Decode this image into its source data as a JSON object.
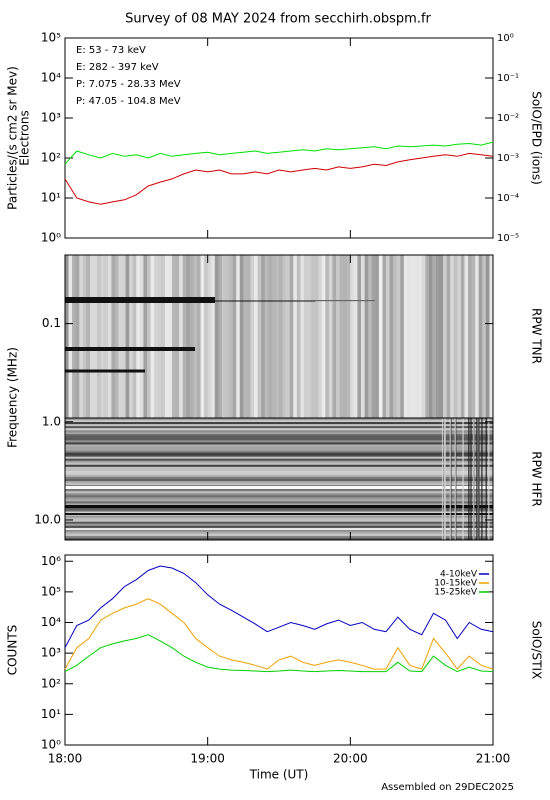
{
  "title": "Survey of 08 MAY 2024 from secchirh.obspm.fr",
  "footer": "Assembled on 29DEC2025",
  "chart_data": [
    {
      "type": "line",
      "log": true,
      "ylabel": [
        "Particles/(s cm2 sr Mev)",
        "Electrons"
      ],
      "y2label": "SolO/EPD (ions)",
      "xlim": [
        18,
        21
      ],
      "x": [
        18,
        18.083,
        18.167,
        18.25,
        18.333,
        18.417,
        18.5,
        18.583,
        18.667,
        18.75,
        18.833,
        18.917,
        19,
        19.083,
        19.167,
        19.25,
        19.333,
        19.417,
        19.5,
        19.583,
        19.667,
        19.75,
        19.833,
        19.917,
        20,
        20.083,
        20.167,
        20.25,
        20.333,
        20.417,
        20.5,
        20.583,
        20.667,
        20.75,
        20.833,
        20.917,
        21
      ],
      "ylim": [
        1,
        100000
      ],
      "yticks": [
        {
          "value": 1,
          "label": "10⁰"
        },
        {
          "value": 10,
          "label": "10¹"
        },
        {
          "value": 100,
          "label": "10²"
        },
        {
          "value": 1000,
          "label": "10³"
        },
        {
          "value": 10000,
          "label": "10⁴"
        },
        {
          "value": 100000,
          "label": "10⁵"
        }
      ],
      "y2lim": [
        1e-05,
        1
      ],
      "y2ticks": [
        {
          "value": 1e-05,
          "label": "10⁻⁵"
        },
        {
          "value": 0.0001,
          "label": "10⁻⁴"
        },
        {
          "value": 0.001,
          "label": "10⁻³"
        },
        {
          "value": 0.01,
          "label": "10⁻²"
        },
        {
          "value": 0.1,
          "label": "10⁻¹"
        },
        {
          "value": 1,
          "label": "10⁰"
        }
      ],
      "legend": "upper left",
      "series": [
        {
          "name": "E: 53 - 73 keV",
          "color": "#00e000",
          "values": [
            70,
            150,
            120,
            100,
            130,
            110,
            120,
            100,
            130,
            110,
            120,
            130,
            140,
            120,
            130,
            140,
            150,
            130,
            140,
            150,
            160,
            150,
            170,
            160,
            170,
            180,
            190,
            170,
            200,
            190,
            200,
            210,
            200,
            220,
            230,
            210,
            250
          ]
        },
        {
          "name": "E: 282 - 397 keV",
          "color": "#d00000",
          "values": [
            30,
            10,
            8,
            7,
            8,
            9,
            12,
            20,
            25,
            30,
            40,
            50,
            45,
            50,
            40,
            40,
            45,
            40,
            50,
            45,
            50,
            55,
            50,
            60,
            55,
            60,
            70,
            65,
            80,
            90,
            100,
            110,
            120,
            110,
            130,
            120,
            110
          ]
        },
        {
          "name": "P: 7.075 - 28.33 MeV",
          "color": "#000000",
          "axis": "y2",
          "values": [
            null,
            null,
            null,
            null,
            null,
            null,
            null,
            null,
            null,
            null,
            null,
            null,
            null,
            null,
            null,
            null,
            null,
            null,
            null,
            null,
            null,
            null,
            null,
            null,
            null,
            null,
            null,
            null,
            null,
            null,
            null,
            null,
            null,
            null,
            null,
            null,
            null
          ]
        },
        {
          "name": "P: 47.05 - 104.8 MeV",
          "color": "#0000c0",
          "axis": "y2",
          "values": [
            null,
            null,
            null,
            null,
            null,
            null,
            null,
            null,
            null,
            null,
            null,
            null,
            null,
            null,
            null,
            null,
            null,
            null,
            null,
            null,
            null,
            null,
            null,
            null,
            null,
            null,
            null,
            null,
            null,
            null,
            null,
            null,
            null,
            null,
            null,
            null,
            null
          ]
        }
      ]
    },
    {
      "type": "spectrogram",
      "log": true,
      "inverted": true,
      "ylabel": "Frequency (MHz)",
      "annotations": [
        "RPW TNR",
        "RPW HFR"
      ],
      "xlim": [
        18,
        21
      ],
      "ylim": [
        0.02,
        16
      ],
      "yticks": [
        0.1,
        {
          "value": 1,
          "label": "1.0"
        },
        {
          "value": 10,
          "label": "10.0"
        }
      ]
    },
    {
      "type": "line",
      "log": true,
      "ylabel": "COUNTS",
      "y2label": "SolO/STIX",
      "xlabel": "Time (UT)",
      "xlim": [
        18,
        21
      ],
      "xticks": [
        {
          "value": 18,
          "label": "18:00"
        },
        {
          "value": 19,
          "label": "19:00"
        },
        {
          "value": 20,
          "label": "20:00"
        },
        {
          "value": 21,
          "label": "21:00"
        }
      ],
      "x": [
        18,
        18.083,
        18.167,
        18.25,
        18.333,
        18.417,
        18.5,
        18.583,
        18.667,
        18.75,
        18.833,
        18.917,
        19,
        19.083,
        19.167,
        19.25,
        19.333,
        19.417,
        19.5,
        19.583,
        19.667,
        19.75,
        19.833,
        19.917,
        20,
        20.083,
        20.167,
        20.25,
        20.333,
        20.417,
        20.5,
        20.583,
        20.667,
        20.75,
        20.833,
        20.917,
        21
      ],
      "ylim": [
        1,
        1600000
      ],
      "yticks": [
        {
          "value": 1,
          "label": "10⁰"
        },
        {
          "value": 10,
          "label": "10¹"
        },
        {
          "value": 100,
          "label": "10²"
        },
        {
          "value": 1000,
          "label": "10³"
        },
        {
          "value": 10000,
          "label": "10⁴"
        },
        {
          "value": 100000,
          "label": "10⁵"
        },
        {
          "value": 1000000,
          "label": "10⁶"
        }
      ],
      "legend": "upper right",
      "series": [
        {
          "name": "4-10keV",
          "color": "#0000c0",
          "values": [
            1500,
            8000,
            12000,
            30000,
            60000,
            150000,
            250000,
            500000,
            700000,
            600000,
            400000,
            200000,
            80000,
            40000,
            25000,
            15000,
            9000,
            5000,
            7000,
            10000,
            8000,
            6000,
            9000,
            12000,
            8000,
            10000,
            6000,
            5000,
            15000,
            6000,
            4000,
            20000,
            12000,
            3000,
            10000,
            6000,
            5000
          ]
        },
        {
          "name": "10-15keV",
          "color": "#f0a000",
          "values": [
            300,
            1500,
            3000,
            12000,
            20000,
            30000,
            40000,
            60000,
            40000,
            20000,
            10000,
            3000,
            1500,
            800,
            600,
            500,
            400,
            300,
            600,
            800,
            500,
            400,
            500,
            600,
            500,
            400,
            300,
            300,
            1500,
            400,
            300,
            3000,
            1000,
            300,
            800,
            400,
            300
          ]
        },
        {
          "name": "15-25keV",
          "color": "#00d000",
          "values": [
            250,
            400,
            800,
            1500,
            2000,
            2500,
            3000,
            4000,
            2500,
            1500,
            800,
            500,
            350,
            300,
            280,
            270,
            260,
            250,
            260,
            280,
            260,
            250,
            260,
            270,
            260,
            250,
            250,
            250,
            500,
            260,
            250,
            800,
            400,
            250,
            350,
            260,
            250
          ]
        }
      ]
    }
  ]
}
